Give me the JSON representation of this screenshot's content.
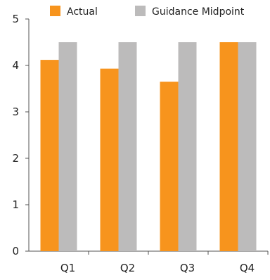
{
  "chart_data": {
    "type": "bar",
    "title": "",
    "xlabel": "",
    "ylabel": "",
    "categories": [
      "Q1",
      "Q2",
      "Q3",
      "Q4"
    ],
    "series": [
      {
        "name": "Actual",
        "values": [
          4.12,
          3.93,
          3.65,
          4.5
        ],
        "color": "#f7941d"
      },
      {
        "name": "Guidance Midpoint",
        "values": [
          4.5,
          4.5,
          4.5,
          4.5
        ],
        "color": "#bcbbbb"
      }
    ],
    "ylim": [
      0,
      5
    ],
    "yticks": [
      "0",
      "1",
      "2",
      "3",
      "4",
      "5"
    ],
    "grid": false,
    "legend_position": "top"
  }
}
